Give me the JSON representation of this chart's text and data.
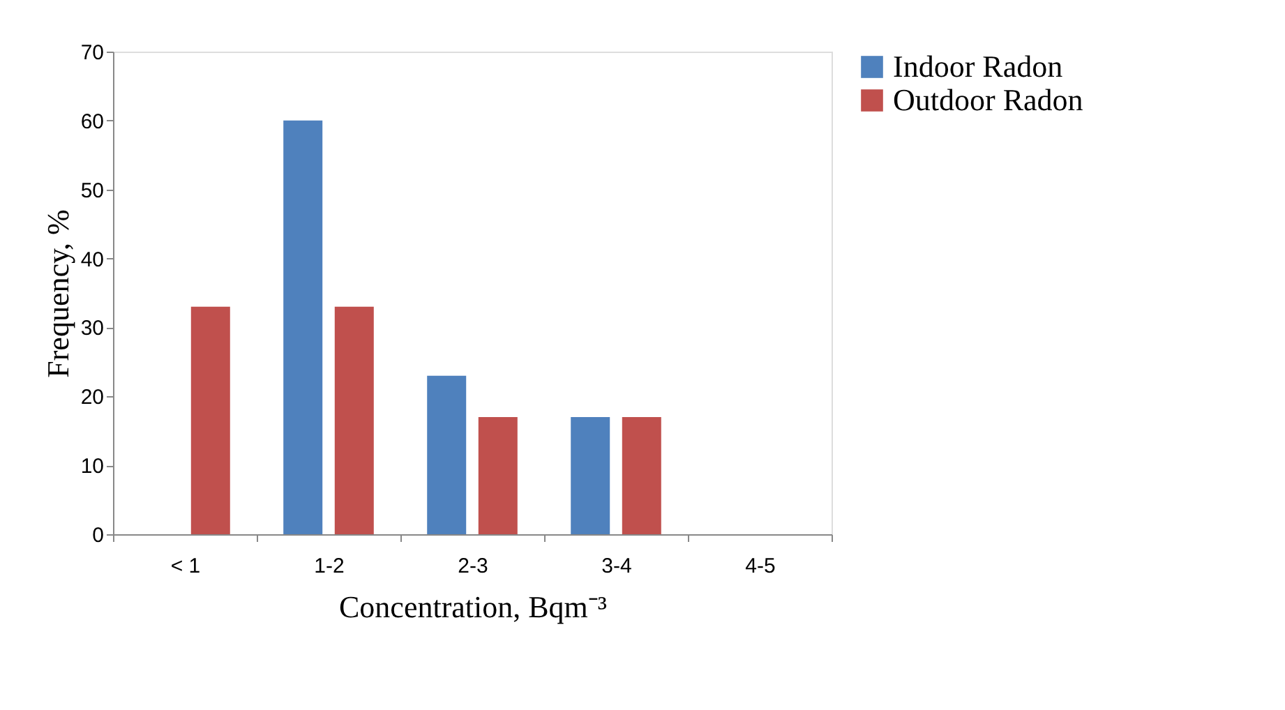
{
  "chart_data": {
    "type": "bar",
    "xlabel": "Concentration, Bqm⁻³",
    "ylabel": "Frequency, %",
    "categories": [
      "< 1",
      "1-2",
      "2-3",
      "3-4",
      "4-5"
    ],
    "series": [
      {
        "name": "Indoor Radon",
        "color": "#4f81bd",
        "values": [
          0,
          60,
          23,
          17,
          0
        ]
      },
      {
        "name": "Outdoor Radon",
        "color": "#c0504d",
        "values": [
          33,
          33,
          17,
          17,
          0
        ]
      }
    ],
    "ylim": [
      0,
      70
    ],
    "yticks": [
      0,
      10,
      20,
      30,
      40,
      50,
      60,
      70
    ],
    "legend": "right"
  }
}
